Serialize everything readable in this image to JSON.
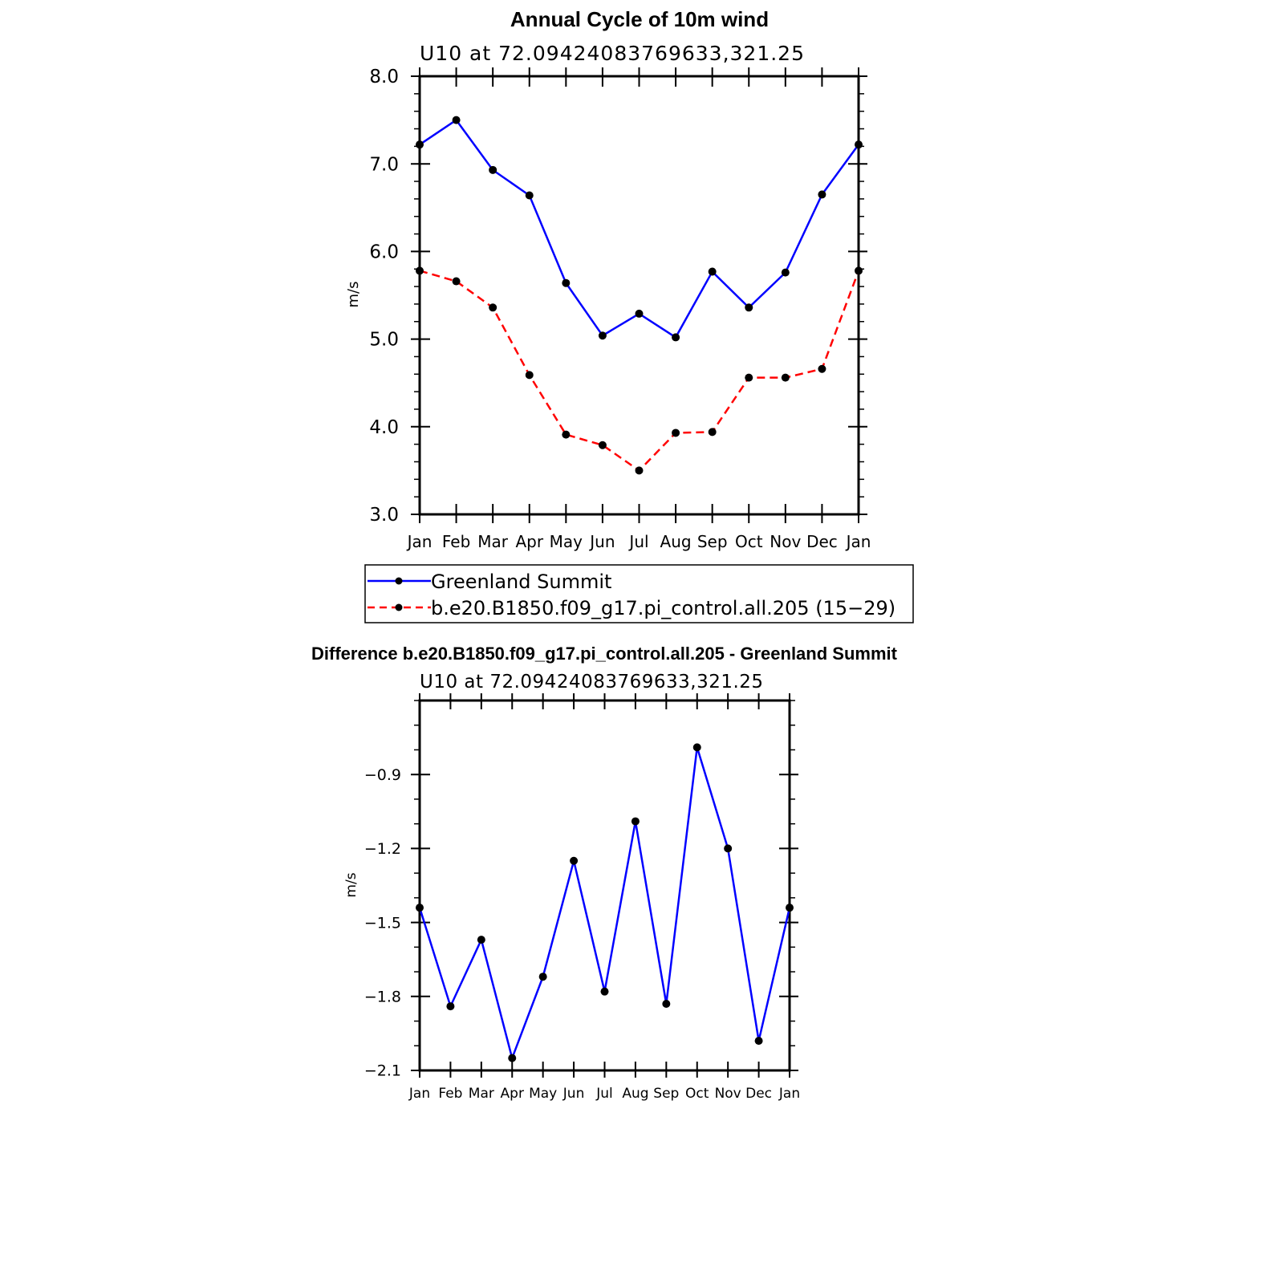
{
  "chart_data": [
    {
      "type": "line",
      "title": "Annual Cycle of 10m wind",
      "subtitle": "U10 at 72.09424083769633,321.25",
      "xlabel": "",
      "ylabel": "m/s",
      "categories": [
        "Jan",
        "Feb",
        "Mar",
        "Apr",
        "May",
        "Jun",
        "Jul",
        "Aug",
        "Sep",
        "Oct",
        "Nov",
        "Dec",
        "Jan"
      ],
      "ylim": [
        3.0,
        8.0
      ],
      "yticks": [
        3.0,
        4.0,
        5.0,
        6.0,
        7.0,
        8.0
      ],
      "ytick_labels": [
        "3.0",
        "4.0",
        "5.0",
        "6.0",
        "7.0",
        "8.0"
      ],
      "series": [
        {
          "name": "Greenland Summit",
          "color": "#0000ff",
          "style": "solid",
          "values": [
            7.22,
            7.5,
            6.93,
            6.64,
            5.64,
            5.04,
            5.29,
            5.02,
            5.77,
            5.36,
            5.76,
            6.65,
            7.22
          ]
        },
        {
          "name": "b.e20.B1850.f09_g17.pi_control.all.205 (15−29)",
          "color": "#ff0000",
          "style": "dashed",
          "values": [
            5.78,
            5.66,
            5.36,
            4.59,
            3.91,
            3.79,
            3.5,
            3.93,
            3.94,
            4.56,
            4.56,
            4.66,
            5.78
          ]
        }
      ],
      "legend": "below"
    },
    {
      "type": "line",
      "title": "Difference b.e20.B1850.f09_g17.pi_control.all.205 - Greenland Summit",
      "subtitle": "U10 at 72.09424083769633,321.25",
      "xlabel": "",
      "ylabel": "m/s",
      "categories": [
        "Jan",
        "Feb",
        "Mar",
        "Apr",
        "May",
        "Jun",
        "Jul",
        "Aug",
        "Sep",
        "Oct",
        "Nov",
        "Dec",
        "Jan"
      ],
      "ylim": [
        -2.1,
        -0.6
      ],
      "yticks": [
        -2.1,
        -1.8,
        -1.5,
        -1.2,
        -0.9
      ],
      "ytick_labels": [
        "−2.1",
        "−1.8",
        "−1.5",
        "−1.2",
        "−0.9"
      ],
      "series": [
        {
          "name": "Difference",
          "color": "#0000ff",
          "style": "solid",
          "values": [
            -1.44,
            -1.84,
            -1.57,
            -2.05,
            -1.72,
            -1.25,
            -1.78,
            -1.09,
            -1.83,
            -0.79,
            -1.2,
            -1.98,
            -1.44
          ]
        }
      ]
    }
  ]
}
